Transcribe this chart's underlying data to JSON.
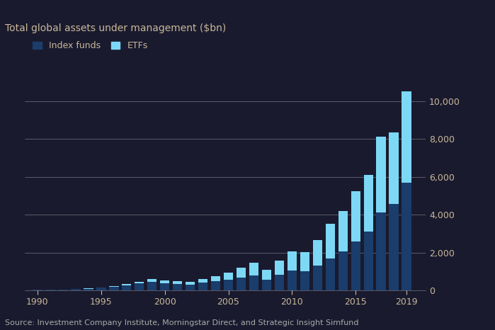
{
  "title": "Total global assets under management ($bn)",
  "source": "Source: Investment Company Institute, Morningstar Direct, and Strategic Insight Simfund",
  "years": [
    1990,
    1991,
    1992,
    1993,
    1994,
    1995,
    1996,
    1997,
    1998,
    1999,
    2000,
    2001,
    2002,
    2003,
    2004,
    2005,
    2006,
    2007,
    2008,
    2009,
    2010,
    2011,
    2012,
    2013,
    2014,
    2015,
    2016,
    2017,
    2018,
    2019
  ],
  "index_funds": [
    30,
    38,
    52,
    80,
    90,
    140,
    200,
    280,
    380,
    450,
    390,
    340,
    310,
    400,
    480,
    560,
    680,
    800,
    580,
    810,
    1060,
    1020,
    1300,
    1700,
    2050,
    2600,
    3100,
    4100,
    4550,
    5700
  ],
  "etfs": [
    1,
    2,
    3,
    5,
    8,
    15,
    30,
    55,
    90,
    140,
    155,
    150,
    140,
    200,
    280,
    380,
    520,
    660,
    500,
    760,
    1000,
    1000,
    1350,
    1800,
    2150,
    2650,
    3000,
    4000,
    3800,
    4800
  ],
  "index_funds_color": "#1a3d6b",
  "etfs_color": "#7dd8f5",
  "background_color": "#1a1a2e",
  "plot_bg_color": "#1a1a2e",
  "grid_color": "#ffffff",
  "title_color": "#c8b89a",
  "tick_color": "#c8b89a",
  "source_color": "#aaaaaa",
  "ylim": [
    0,
    11500
  ],
  "yticks": [
    0,
    2000,
    4000,
    6000,
    8000,
    10000
  ],
  "xtick_positions": [
    1990,
    1995,
    2000,
    2005,
    2010,
    2015,
    2019
  ],
  "title_fontsize": 10,
  "legend_fontsize": 9,
  "source_fontsize": 8
}
